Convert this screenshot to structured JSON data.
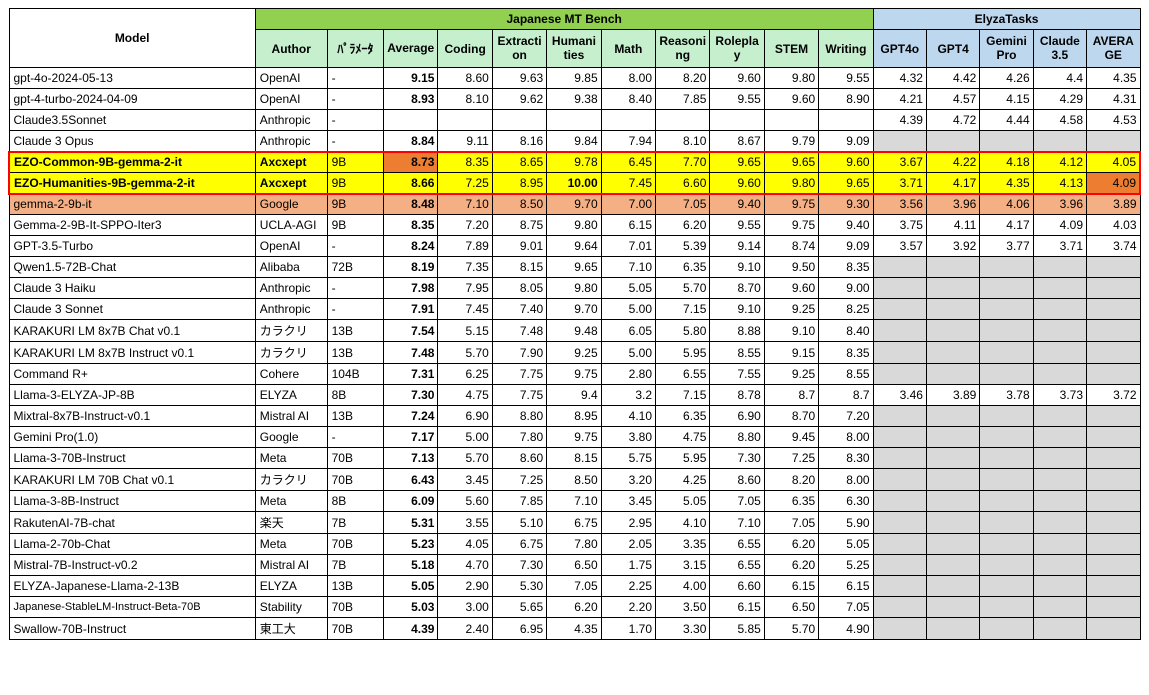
{
  "colors": {
    "headerGreen": "#c6efce",
    "headerGreenDark": "#92d050",
    "headerBlue": "#bdd7ee",
    "yellow": "#ffff00",
    "salmon": "#f4b084",
    "orange": "#ed7d31",
    "grayBlank": "#d9d9d9"
  },
  "header": {
    "model": "Model",
    "mtBench": "Japanese MT Bench",
    "elyza": "ElyzaTasks",
    "author": "Author",
    "params": "ﾊﾟﾗﾒｰﾀ",
    "avg": "Average",
    "coding": "Coding",
    "extraction": "Extraction",
    "humanities": "Humanities",
    "math": "Math",
    "reasoning": "Reasoning",
    "roleplay": "Roleplay",
    "stem": "STEM",
    "writing": "Writing",
    "gpt4o": "GPT4o",
    "gpt4": "GPT4",
    "gemini": "GeminiPro",
    "claude": "Claude3.5",
    "elyzaAvg": "AVERAGE"
  },
  "rows": [
    {
      "model": "gpt-4o-2024-05-13",
      "author": "OpenAI",
      "param": "-",
      "avg": "9.15",
      "coding": "8.60",
      "extraction": "9.63",
      "humanities": "9.85",
      "math": "8.00",
      "reasoning": "8.20",
      "roleplay": "9.60",
      "stem": "9.80",
      "writing": "9.55",
      "gpt4o": "4.32",
      "gpt4": "4.42",
      "gemini": "4.26",
      "claude": "4.4",
      "eavg": "4.35"
    },
    {
      "model": "gpt-4-turbo-2024-04-09",
      "author": "OpenAI",
      "param": "-",
      "avg": "8.93",
      "coding": "8.10",
      "extraction": "9.62",
      "humanities": "9.38",
      "math": "8.40",
      "reasoning": "7.85",
      "roleplay": "9.55",
      "stem": "9.60",
      "writing": "8.90",
      "gpt4o": "4.21",
      "gpt4": "4.57",
      "gemini": "4.15",
      "claude": "4.29",
      "eavg": "4.31"
    },
    {
      "model": "Claude3.5Sonnet",
      "author": "Anthropic",
      "param": "-",
      "avg": "",
      "coding": "",
      "extraction": "",
      "humanities": "",
      "math": "",
      "reasoning": "",
      "roleplay": "",
      "stem": "",
      "writing": "",
      "gpt4o": "4.39",
      "gpt4": "4.72",
      "gemini": "4.44",
      "claude": "4.58",
      "eavg": "4.53"
    },
    {
      "model": "Claude 3 Opus",
      "author": "Anthropic",
      "param": "-",
      "avg": "8.84",
      "coding": "9.11",
      "extraction": "8.16",
      "humanities": "9.84",
      "math": "7.94",
      "reasoning": "8.10",
      "roleplay": "8.67",
      "stem": "9.79",
      "writing": "9.09",
      "gpt4o": "",
      "gpt4": "",
      "gemini": "",
      "claude": "",
      "eavg": "",
      "elyzaGray": true
    },
    {
      "model": "EZO-Common-9B-gemma-2-it",
      "author": "Axcxept",
      "param": "9B",
      "avg": "8.73",
      "coding": "8.35",
      "extraction": "8.65",
      "humanities": "9.78",
      "math": "6.45",
      "reasoning": "7.70",
      "roleplay": "9.65",
      "stem": "9.65",
      "writing": "9.60",
      "gpt4o": "3.67",
      "gpt4": "4.22",
      "gemini": "4.18",
      "claude": "4.12",
      "eavg": "4.05",
      "rowStyle": "yellow",
      "avgStyle": "orange",
      "redTop": true,
      "bold": true
    },
    {
      "model": "EZO-Humanities-9B-gemma-2-it",
      "author": "Axcxept",
      "param": "9B",
      "avg": "8.66",
      "coding": "7.25",
      "extraction": "8.95",
      "humanities": "10.00",
      "humanitiesBold": true,
      "math": "7.45",
      "reasoning": "6.60",
      "roleplay": "9.60",
      "stem": "9.80",
      "writing": "9.65",
      "gpt4o": "3.71",
      "gpt4": "4.17",
      "gemini": "4.35",
      "claude": "4.13",
      "eavg": "4.09",
      "eavgStyle": "orange",
      "rowStyle": "yellow",
      "redBot": true,
      "bold": true
    },
    {
      "model": "gemma-2-9b-it",
      "author": "Google",
      "param": "9B",
      "avg": "8.48",
      "coding": "7.10",
      "extraction": "8.50",
      "humanities": "9.70",
      "math": "7.00",
      "reasoning": "7.05",
      "roleplay": "9.40",
      "stem": "9.75",
      "writing": "9.30",
      "gpt4o": "3.56",
      "gpt4": "3.96",
      "gemini": "4.06",
      "claude": "3.96",
      "eavg": "3.89",
      "rowStyle": "salmon"
    },
    {
      "model": "Gemma-2-9B-It-SPPO-Iter3",
      "author": "UCLA-AGI",
      "param": "9B",
      "avg": "8.35",
      "coding": "7.20",
      "extraction": "8.75",
      "humanities": "9.80",
      "math": "6.15",
      "reasoning": "6.20",
      "roleplay": "9.55",
      "stem": "9.75",
      "writing": "9.40",
      "gpt4o": "3.75",
      "gpt4": "4.11",
      "gemini": "4.17",
      "claude": "4.09",
      "eavg": "4.03"
    },
    {
      "model": "GPT-3.5-Turbo",
      "author": "OpenAI",
      "param": "-",
      "avg": "8.24",
      "coding": "7.89",
      "extraction": "9.01",
      "humanities": "9.64",
      "math": "7.01",
      "reasoning": "5.39",
      "roleplay": "9.14",
      "stem": "8.74",
      "writing": "9.09",
      "gpt4o": "3.57",
      "gpt4": "3.92",
      "gemini": "3.77",
      "claude": "3.71",
      "eavg": "3.74"
    },
    {
      "model": "Qwen1.5-72B-Chat",
      "author": "Alibaba",
      "param": "72B",
      "avg": "8.19",
      "coding": "7.35",
      "extraction": "8.15",
      "humanities": "9.65",
      "math": "7.10",
      "reasoning": "6.35",
      "roleplay": "9.10",
      "stem": "9.50",
      "writing": "8.35",
      "elyzaGray": true
    },
    {
      "model": "Claude 3 Haiku",
      "author": "Anthropic",
      "param": "-",
      "avg": "7.98",
      "coding": "7.95",
      "extraction": "8.05",
      "humanities": "9.80",
      "math": "5.05",
      "reasoning": "5.70",
      "roleplay": "8.70",
      "stem": "9.60",
      "writing": "9.00",
      "elyzaGray": true
    },
    {
      "model": "Claude 3 Sonnet",
      "author": "Anthropic",
      "param": "-",
      "avg": "7.91",
      "coding": "7.45",
      "extraction": "7.40",
      "humanities": "9.70",
      "math": "5.00",
      "reasoning": "7.15",
      "roleplay": "9.10",
      "stem": "9.25",
      "writing": "8.25",
      "elyzaGray": true
    },
    {
      "model": "KARAKURI LM 8x7B Chat v0.1",
      "author": "カラクリ",
      "param": "13B",
      "avg": "7.54",
      "coding": "5.15",
      "extraction": "7.48",
      "humanities": "9.48",
      "math": "6.05",
      "reasoning": "5.80",
      "roleplay": "8.88",
      "stem": "9.10",
      "writing": "8.40",
      "elyzaGray": true
    },
    {
      "model": "KARAKURI LM 8x7B Instruct v0.1",
      "author": "カラクリ",
      "param": "13B",
      "avg": "7.48",
      "coding": "5.70",
      "extraction": "7.90",
      "humanities": "9.25",
      "math": "5.00",
      "reasoning": "5.95",
      "roleplay": "8.55",
      "stem": "9.15",
      "writing": "8.35",
      "elyzaGray": true
    },
    {
      "model": "Command R+",
      "author": "Cohere",
      "param": "104B",
      "avg": "7.31",
      "coding": "6.25",
      "extraction": "7.75",
      "humanities": "9.75",
      "math": "2.80",
      "reasoning": "6.55",
      "roleplay": "7.55",
      "stem": "9.25",
      "writing": "8.55",
      "elyzaGray": true
    },
    {
      "model": "Llama-3-ELYZA-JP-8B",
      "author": "ELYZA",
      "param": "8B",
      "avg": "7.30",
      "coding": "4.75",
      "extraction": "7.75",
      "humanities": "9.4",
      "math": "3.2",
      "reasoning": "7.15",
      "roleplay": "8.78",
      "stem": "8.7",
      "writing": "8.7",
      "gpt4o": "3.46",
      "gpt4": "3.89",
      "gemini": "3.78",
      "claude": "3.73",
      "eavg": "3.72"
    },
    {
      "model": "Mixtral-8x7B-Instruct-v0.1",
      "author": "Mistral AI",
      "param": "13B",
      "avg": "7.24",
      "coding": "6.90",
      "extraction": "8.80",
      "humanities": "8.95",
      "math": "4.10",
      "reasoning": "6.35",
      "roleplay": "6.90",
      "stem": "8.70",
      "writing": "7.20",
      "elyzaGray": true
    },
    {
      "model": "Gemini Pro(1.0)",
      "author": "Google",
      "param": "-",
      "avg": "7.17",
      "coding": "5.00",
      "extraction": "7.80",
      "humanities": "9.75",
      "math": "3.80",
      "reasoning": "4.75",
      "roleplay": "8.80",
      "stem": "9.45",
      "writing": "8.00",
      "elyzaGray": true
    },
    {
      "model": "Llama-3-70B-Instruct",
      "author": "Meta",
      "param": "70B",
      "avg": "7.13",
      "coding": "5.70",
      "extraction": "8.60",
      "humanities": "8.15",
      "math": "5.75",
      "reasoning": "5.95",
      "roleplay": "7.30",
      "stem": "7.25",
      "writing": "8.30",
      "elyzaGray": true
    },
    {
      "model": "KARAKURI LM 70B Chat v0.1",
      "author": "カラクリ",
      "param": "70B",
      "avg": "6.43",
      "coding": "3.45",
      "extraction": "7.25",
      "humanities": "8.50",
      "math": "3.20",
      "reasoning": "4.25",
      "roleplay": "8.60",
      "stem": "8.20",
      "writing": "8.00",
      "elyzaGray": true
    },
    {
      "model": "Llama-3-8B-Instruct",
      "author": "Meta",
      "param": "8B",
      "avg": "6.09",
      "coding": "5.60",
      "extraction": "7.85",
      "humanities": "7.10",
      "math": "3.45",
      "reasoning": "5.05",
      "roleplay": "7.05",
      "stem": "6.35",
      "writing": "6.30",
      "elyzaGray": true
    },
    {
      "model": "RakutenAI-7B-chat",
      "author": "楽天",
      "param": "7B",
      "avg": "5.31",
      "coding": "3.55",
      "extraction": "5.10",
      "humanities": "6.75",
      "math": "2.95",
      "reasoning": "4.10",
      "roleplay": "7.10",
      "stem": "7.05",
      "writing": "5.90",
      "elyzaGray": true
    },
    {
      "model": "Llama-2-70b-Chat",
      "author": "Meta",
      "param": "70B",
      "avg": "5.23",
      "coding": "4.05",
      "extraction": "6.75",
      "humanities": "7.80",
      "math": "2.05",
      "reasoning": "3.35",
      "roleplay": "6.55",
      "stem": "6.20",
      "writing": "5.05",
      "elyzaGray": true
    },
    {
      "model": "Mistral-7B-Instruct-v0.2",
      "author": "Mistral AI",
      "param": "7B",
      "avg": "5.18",
      "coding": "4.70",
      "extraction": "7.30",
      "humanities": "6.50",
      "math": "1.75",
      "reasoning": "3.15",
      "roleplay": "6.55",
      "stem": "6.20",
      "writing": "5.25",
      "elyzaGray": true
    },
    {
      "model": "ELYZA-Japanese-Llama-2-13B",
      "author": "ELYZA",
      "param": "13B",
      "avg": "5.05",
      "coding": "2.90",
      "extraction": "5.30",
      "humanities": "7.05",
      "math": "2.25",
      "reasoning": "4.00",
      "roleplay": "6.60",
      "stem": "6.15",
      "writing": "6.15",
      "elyzaGray": true
    },
    {
      "model": "Japanese-StableLM-Instruct-Beta-70B",
      "modelSize": "11",
      "author": "Stability",
      "param": "70B",
      "avg": "5.03",
      "coding": "3.00",
      "extraction": "5.65",
      "humanities": "6.20",
      "math": "2.20",
      "reasoning": "3.50",
      "roleplay": "6.15",
      "stem": "6.50",
      "writing": "7.05",
      "elyzaGray": true
    },
    {
      "model": "Swallow-70B-Instruct",
      "author": "東工大",
      "param": "70B",
      "avg": "4.39",
      "coding": "2.40",
      "extraction": "6.95",
      "humanities": "4.35",
      "math": "1.70",
      "reasoning": "3.30",
      "roleplay": "5.85",
      "stem": "5.70",
      "writing": "4.90",
      "elyzaGray": true
    }
  ]
}
